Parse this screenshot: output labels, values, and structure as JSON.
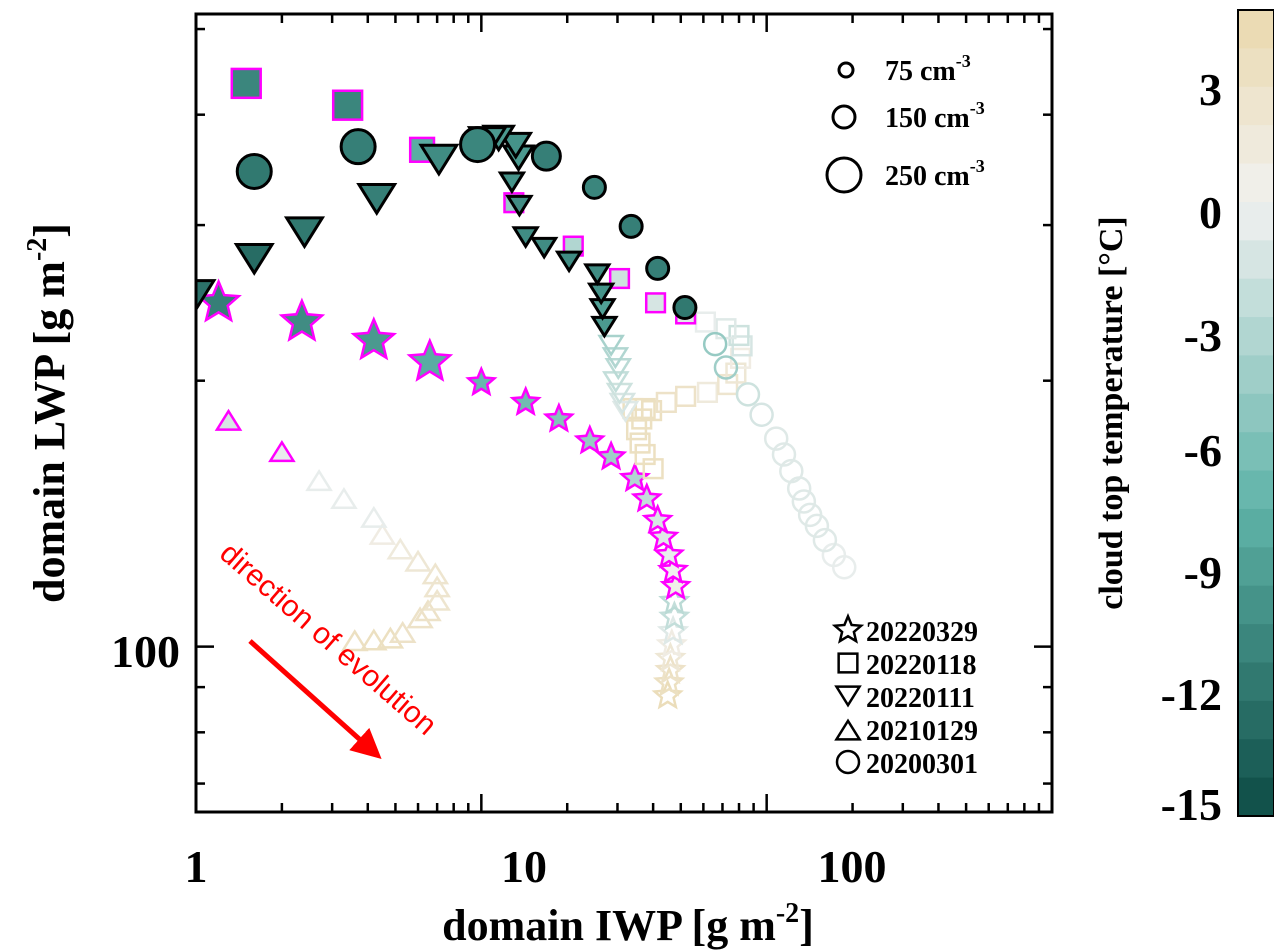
{
  "colors": {
    "cold": "#0d4b45",
    "mid": "#5fb3a8",
    "neutral": "#f1f1f0",
    "warm": "#ead8ad",
    "highlight": "#ff00ff",
    "arrow": "#ff0000"
  },
  "annotation": {
    "text": "direction of evolution"
  },
  "size_legend": [
    {
      "value": "75",
      "unit": "cm",
      "exp": "-3"
    },
    {
      "value": "150",
      "unit": "cm",
      "exp": "-3"
    },
    {
      "value": "250",
      "unit": "cm",
      "exp": "-3"
    }
  ],
  "case_legend": [
    "20220329",
    "20220118",
    "20220111",
    "20210129",
    "20200301"
  ],
  "colorbar": {
    "title_main": "cloud top temperature [",
    "title_unit": "°C]",
    "ticks": [
      "3",
      "0",
      "-3",
      "-6",
      "-9",
      "-12",
      "-15"
    ],
    "range": [
      -16,
      5
    ]
  },
  "chart_data": {
    "type": "scatter",
    "xscale": "log",
    "yscale": "log",
    "xlim": [
      1,
      1000
    ],
    "ylim": [
      65,
      520
    ],
    "xlabel": {
      "main": "domain IWP [g m",
      "exp": "-2",
      "end": "]"
    },
    "ylabel": {
      "main": "domain LWP [g m",
      "exp": "-2",
      "end": "]"
    },
    "x_ticklabels": [
      "1",
      "10",
      "100"
    ],
    "y_ticklabels": [
      "100"
    ],
    "series": [
      {
        "name": "20220329",
        "marker": "star",
        "points": [
          [
            1.2,
            245,
            -12,
            1,
            250
          ],
          [
            2.35,
            233,
            -11,
            1,
            250
          ],
          [
            4.2,
            222,
            -10,
            1,
            250
          ],
          [
            6.6,
            210,
            -8.5,
            1,
            250
          ],
          [
            10,
            199,
            -7.5,
            1,
            150
          ],
          [
            14.3,
            189,
            -7,
            1,
            150
          ],
          [
            18.7,
            181,
            -6,
            1,
            150
          ],
          [
            24,
            171,
            -5,
            1,
            150
          ],
          [
            28.5,
            164,
            -4.5,
            1,
            150
          ],
          [
            34.5,
            155,
            -3.5,
            1,
            150
          ],
          [
            38,
            147,
            -2.5,
            1,
            150
          ],
          [
            41.5,
            139,
            -1.5,
            1,
            150
          ],
          [
            43.5,
            133,
            -1,
            1,
            150
          ],
          [
            45.5,
            127,
            -0.5,
            1,
            150
          ],
          [
            47,
            122,
            0,
            1,
            150
          ],
          [
            48,
            117,
            0.5,
            1,
            150
          ],
          [
            47.5,
            112.5,
            -3,
            0,
            150
          ],
          [
            47.5,
            108,
            -2.5,
            0,
            150
          ],
          [
            47,
            104,
            -1,
            0,
            150
          ],
          [
            46.5,
            100.5,
            1,
            0,
            150
          ],
          [
            46,
            97,
            2,
            0,
            150
          ],
          [
            46,
            94,
            3,
            0,
            150
          ],
          [
            45.5,
            91,
            3.5,
            0,
            150
          ],
          [
            45,
            88,
            4,
            0,
            150
          ]
        ]
      },
      {
        "name": "20220118",
        "marker": "square",
        "points": [
          [
            1.5,
            434,
            -11.5,
            1,
            250
          ],
          [
            3.4,
            410,
            -11.5,
            1,
            250
          ],
          [
            6.2,
            365,
            -8.5,
            1,
            200
          ],
          [
            13,
            318,
            -5,
            1,
            150
          ],
          [
            21,
            284,
            -3.5,
            1,
            150
          ],
          [
            30.5,
            261,
            -2,
            1,
            150
          ],
          [
            40.8,
            245,
            -1.5,
            1,
            150
          ],
          [
            52,
            238,
            -1,
            1,
            150
          ],
          [
            61,
            233,
            -0.5,
            0,
            150
          ],
          [
            72,
            229,
            -1,
            0,
            150
          ],
          [
            80,
            225,
            -2,
            0,
            150
          ],
          [
            82,
            219,
            -1.5,
            0,
            150
          ],
          [
            81,
            212,
            1,
            0,
            150
          ],
          [
            78,
            204,
            2,
            0,
            150
          ],
          [
            73,
            198,
            2.5,
            0,
            150
          ],
          [
            62,
            194,
            1.5,
            0,
            150
          ],
          [
            52,
            192,
            3,
            0,
            150
          ],
          [
            44.5,
            189,
            3,
            0,
            150
          ],
          [
            39.5,
            185,
            3.5,
            0,
            150
          ],
          [
            36.5,
            181,
            3.5,
            0,
            150
          ],
          [
            35,
            176,
            3.5,
            0,
            150
          ],
          [
            36,
            170,
            3.5,
            0,
            150
          ],
          [
            37.5,
            165,
            3.5,
            0,
            150
          ],
          [
            40,
            159,
            3.5,
            0,
            150
          ],
          [
            34,
            186,
            3.5,
            0,
            150
          ],
          [
            37.5,
            186,
            3.5,
            0,
            150
          ]
        ]
      },
      {
        "name": "20220111",
        "marker": "tri_down",
        "points": [
          [
            1,
            253,
            -13,
            0,
            250
          ],
          [
            1.6,
            278,
            -13.5,
            0,
            250
          ],
          [
            2.4,
            298,
            -12.5,
            0,
            250
          ],
          [
            4.3,
            325,
            -12,
            0,
            250
          ],
          [
            7.1,
            360,
            -11,
            0,
            250
          ],
          [
            10.5,
            377,
            -10,
            0,
            250
          ],
          [
            11.5,
            380,
            -10,
            0,
            200
          ],
          [
            13.2,
            373,
            -10.5,
            0,
            200
          ],
          [
            13.5,
            361,
            -10,
            0,
            200
          ],
          [
            12.8,
            338,
            -10.5,
            0,
            150
          ],
          [
            13.6,
            318,
            -11,
            0,
            150
          ],
          [
            14.3,
            293,
            -11,
            0,
            150
          ],
          [
            16.6,
            285,
            -11,
            0,
            150
          ],
          [
            20.3,
            275,
            -11,
            0,
            150
          ],
          [
            25.5,
            266,
            -11,
            0,
            150
          ],
          [
            26.3,
            253,
            -10.5,
            0,
            150
          ],
          [
            26.6,
            243,
            -9.5,
            0,
            150
          ],
          [
            27,
            232,
            -10,
            0,
            150
          ],
          [
            28.5,
            221,
            -4,
            0,
            150
          ],
          [
            29.5,
            214,
            -3.5,
            0,
            150
          ],
          [
            30.2,
            208,
            -3,
            0,
            150
          ],
          [
            29.6,
            201,
            -2.5,
            0,
            150
          ],
          [
            30.5,
            195,
            -2,
            0,
            150
          ],
          [
            31.2,
            190,
            -1.5,
            0,
            150
          ],
          [
            32,
            186,
            -1,
            0,
            150
          ]
        ]
      },
      {
        "name": "20210129",
        "marker": "tri_up",
        "points": [
          [
            1.3,
            179,
            -1.5,
            1,
            150
          ],
          [
            2,
            165,
            -0.5,
            1,
            150
          ],
          [
            2.7,
            153,
            -0.5,
            0,
            150
          ],
          [
            3.3,
            146,
            -0.5,
            0,
            150
          ],
          [
            4.2,
            139,
            -0.5,
            0,
            150
          ],
          [
            4.5,
            133,
            1,
            0,
            150
          ],
          [
            5.2,
            128,
            1.5,
            0,
            150
          ],
          [
            6,
            124,
            2,
            0,
            150
          ],
          [
            6.9,
            120,
            2.5,
            0,
            150
          ],
          [
            7,
            116,
            2.5,
            0,
            150
          ],
          [
            7,
            112,
            2.5,
            0,
            150
          ],
          [
            6.5,
            109,
            3,
            0,
            150
          ],
          [
            6.1,
            107,
            3,
            0,
            150
          ],
          [
            5.3,
            103,
            3,
            0,
            150
          ],
          [
            4.8,
            101.5,
            3.5,
            0,
            150
          ],
          [
            4.2,
            101,
            3.5,
            0,
            150
          ],
          [
            3.6,
            100.8,
            3.5,
            0,
            150
          ]
        ]
      },
      {
        "name": "20200301",
        "marker": "circle",
        "points": [
          [
            1.6,
            345,
            -12.5,
            0,
            250
          ],
          [
            3.7,
            368,
            -12,
            0,
            250
          ],
          [
            9.7,
            370,
            -11.5,
            0,
            250
          ],
          [
            16.9,
            359,
            -12,
            0,
            200
          ],
          [
            24.9,
            331,
            -11.5,
            0,
            150
          ],
          [
            33.5,
            299,
            -12,
            0,
            150
          ],
          [
            41.5,
            268,
            -12,
            0,
            150
          ],
          [
            51.7,
            242,
            -12.5,
            0,
            150
          ],
          [
            66,
            220,
            -5,
            0,
            150
          ],
          [
            72,
            207,
            -4.5,
            0,
            150
          ],
          [
            86,
            193,
            -2,
            0,
            150
          ],
          [
            96,
            183,
            -1.5,
            0,
            150
          ],
          [
            108,
            172,
            -1,
            0,
            150
          ],
          [
            115,
            165,
            -1,
            0,
            150
          ],
          [
            122,
            158,
            -1,
            0,
            150
          ],
          [
            130,
            151,
            -1,
            0,
            150
          ],
          [
            135,
            146,
            -1,
            0,
            150
          ],
          [
            142,
            141,
            -1,
            0,
            150
          ],
          [
            150,
            137,
            -1,
            0,
            150
          ],
          [
            160,
            132,
            -1,
            0,
            150
          ],
          [
            172,
            127,
            -0.5,
            0,
            150
          ],
          [
            187,
            123,
            -0.5,
            0,
            150
          ]
        ]
      }
    ]
  }
}
